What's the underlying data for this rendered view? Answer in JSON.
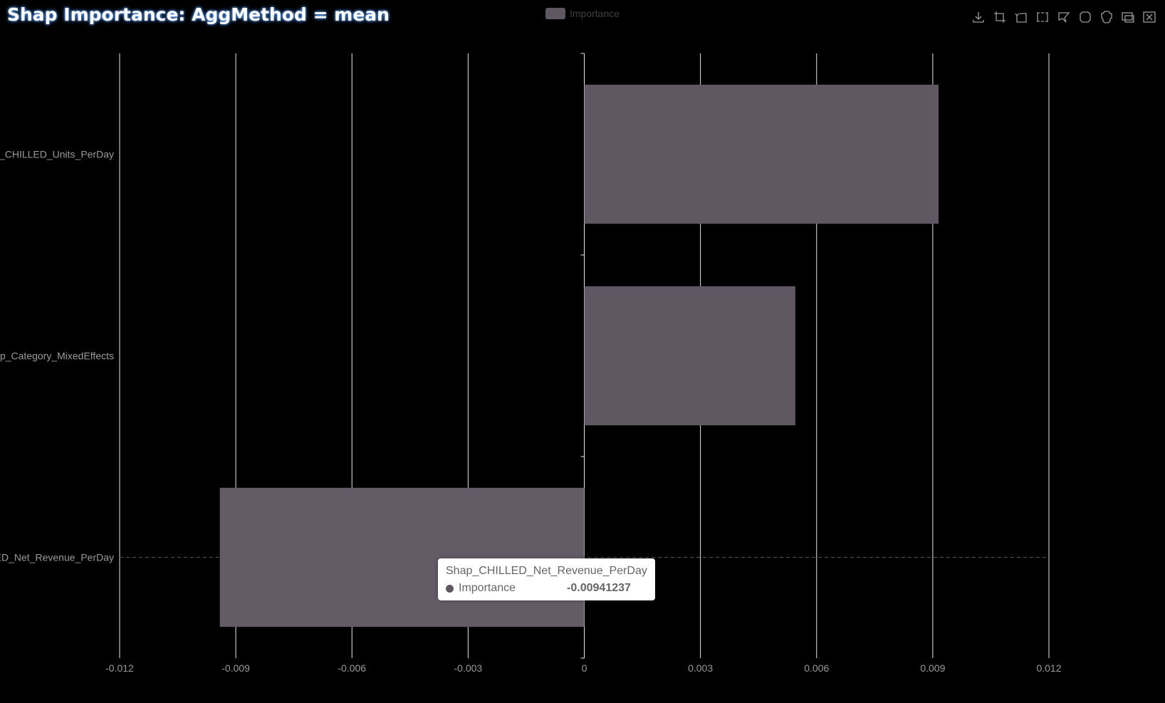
{
  "chart_data": {
    "type": "bar",
    "orientation": "horizontal",
    "title": "Shap Importance: AggMethod = mean",
    "categories": [
      "Shap_CHILLED_Units_PerDay",
      "Shap_Category_MixedEffects",
      "Shap_CHILLED_Net_Revenue_PerDay"
    ],
    "series": [
      {
        "name": "Importance",
        "values": [
          0.00915,
          0.00545,
          -0.00941237
        ]
      }
    ],
    "xlim": [
      -0.012,
      0.012
    ],
    "xticks": [
      -0.012,
      -0.009,
      -0.006,
      -0.003,
      0,
      0.003,
      0.006,
      0.009,
      0.012
    ],
    "xtick_labels": [
      "-0.012",
      "-0.009",
      "-0.006",
      "-0.003",
      "0",
      "0.003",
      "0.006",
      "0.009",
      "0.012"
    ],
    "grid": true,
    "legend": "top-center",
    "bar_color": "#5f5863"
  },
  "tooltip": {
    "title": "Shap_CHILLED_Net_Revenue_PerDay",
    "series_name": "Importance",
    "value": "-0.00941237"
  },
  "toolbox": {
    "icons": [
      "download-icon",
      "zoom-icon",
      "zoom-reset-icon",
      "rect-select-icon",
      "lasso-select-icon",
      "keep-select-icon",
      "clear-select-icon",
      "data-view-icon",
      "close-icon"
    ]
  }
}
